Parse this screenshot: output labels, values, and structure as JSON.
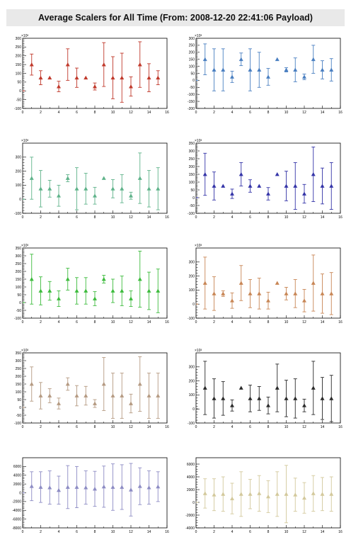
{
  "title": "Average Scalers for All Time (From: 2008-12-20 22:41:06 Payload)",
  "chart_data": [
    {
      "type": "scatter",
      "color": "#c0392b",
      "multiplier": "×10³",
      "xlim": [
        0,
        16
      ],
      "ylim": [
        -100,
        300
      ],
      "yticks": [
        -100,
        -50,
        0,
        50,
        100,
        150,
        200,
        250,
        300
      ],
      "ytick_labels": [
        "-100",
        "-50",
        "0",
        "50",
        "100",
        "150",
        "200",
        "250",
        "300"
      ],
      "xticks": [
        0,
        2,
        4,
        6,
        8,
        10,
        12,
        14,
        16
      ],
      "x": [
        0,
        1,
        2,
        3,
        4,
        5,
        6,
        7,
        8,
        9,
        10,
        11,
        12,
        13,
        14,
        15
      ],
      "y": [
        0,
        150,
        75,
        75,
        25,
        150,
        75,
        75,
        25,
        150,
        75,
        75,
        25,
        150,
        75,
        75
      ],
      "err": [
        0,
        60,
        40,
        0,
        30,
        90,
        55,
        0,
        20,
        125,
        120,
        140,
        55,
        130,
        80,
        40
      ]
    },
    {
      "type": "scatter",
      "color": "#4a7fc1",
      "multiplier": "×10³",
      "xlim": [
        0,
        16
      ],
      "ylim": [
        -200,
        300
      ],
      "yticks": [
        -200,
        -150,
        -100,
        -50,
        0,
        50,
        100,
        150,
        200,
        250,
        300
      ],
      "ytick_labels": [
        "-200",
        "-150",
        "-100",
        "-50",
        "0",
        "50",
        "100",
        "150",
        "200",
        "250",
        "300"
      ],
      "xticks": [
        0,
        2,
        4,
        6,
        8,
        10,
        12,
        14,
        16
      ],
      "x": [
        0,
        1,
        2,
        3,
        4,
        5,
        6,
        7,
        8,
        9,
        10,
        11,
        12,
        13,
        14,
        15
      ],
      "y": [
        0,
        150,
        75,
        75,
        25,
        150,
        75,
        75,
        25,
        150,
        75,
        75,
        25,
        150,
        75,
        75
      ],
      "err": [
        0,
        110,
        150,
        150,
        40,
        45,
        150,
        125,
        60,
        0,
        15,
        85,
        20,
        100,
        65,
        80
      ]
    },
    {
      "type": "scatter",
      "color": "#5fb38a",
      "multiplier": "×10³",
      "xlim": [
        0,
        16
      ],
      "ylim": [
        -100,
        400
      ],
      "yticks": [
        -100,
        0,
        100,
        200,
        300
      ],
      "ytick_labels": [
        "-100",
        "0",
        "100",
        "200",
        "300"
      ],
      "xticks": [
        0,
        2,
        4,
        6,
        8,
        10,
        12,
        14,
        16
      ],
      "x": [
        0,
        1,
        2,
        3,
        4,
        5,
        6,
        7,
        8,
        9,
        10,
        11,
        12,
        13,
        14,
        15
      ],
      "y": [
        0,
        150,
        75,
        75,
        25,
        150,
        75,
        75,
        25,
        150,
        75,
        75,
        25,
        150,
        75,
        75
      ],
      "err": [
        0,
        150,
        130,
        60,
        75,
        25,
        150,
        110,
        60,
        0,
        65,
        100,
        25,
        180,
        130,
        150
      ]
    },
    {
      "type": "scatter",
      "color": "#3535a8",
      "multiplier": "×10³",
      "xlim": [
        0,
        16
      ],
      "ylim": [
        -100,
        350
      ],
      "yticks": [
        -100,
        -50,
        0,
        50,
        100,
        150,
        200,
        250,
        300,
        350
      ],
      "ytick_labels": [
        "-100",
        "-50",
        "0",
        "50",
        "100",
        "150",
        "200",
        "250",
        "300",
        "350"
      ],
      "xticks": [
        0,
        2,
        4,
        6,
        8,
        10,
        12,
        14,
        16
      ],
      "x": [
        0,
        1,
        2,
        3,
        4,
        5,
        6,
        7,
        8,
        9,
        10,
        11,
        12,
        13,
        14,
        15
      ],
      "y": [
        0,
        150,
        75,
        75,
        25,
        150,
        75,
        75,
        25,
        150,
        75,
        75,
        25,
        150,
        75,
        75
      ],
      "err": [
        0,
        135,
        90,
        0,
        30,
        75,
        40,
        0,
        40,
        0,
        95,
        150,
        60,
        175,
        115,
        150
      ]
    },
    {
      "type": "scatter",
      "color": "#3dbb3d",
      "multiplier": "×10³",
      "xlim": [
        0,
        16
      ],
      "ylim": [
        -100,
        350
      ],
      "yticks": [
        -100,
        -50,
        0,
        50,
        100,
        150,
        200,
        250,
        300,
        350
      ],
      "ytick_labels": [
        "-100",
        "-50",
        "0",
        "50",
        "100",
        "150",
        "200",
        "250",
        "300",
        "350"
      ],
      "xticks": [
        0,
        2,
        4,
        6,
        8,
        10,
        12,
        14,
        16
      ],
      "x": [
        0,
        1,
        2,
        3,
        4,
        5,
        6,
        7,
        8,
        9,
        10,
        11,
        12,
        13,
        14,
        15
      ],
      "y": [
        0,
        150,
        75,
        75,
        25,
        150,
        75,
        75,
        25,
        150,
        75,
        75,
        25,
        150,
        75,
        75
      ],
      "err": [
        0,
        160,
        90,
        60,
        50,
        70,
        85,
        85,
        45,
        25,
        75,
        95,
        50,
        180,
        120,
        140
      ]
    },
    {
      "type": "scatter",
      "color": "#c88655",
      "multiplier": "×10³",
      "xlim": [
        0,
        16
      ],
      "ylim": [
        -100,
        400
      ],
      "yticks": [
        -100,
        0,
        100,
        200,
        300
      ],
      "ytick_labels": [
        "-100",
        "0",
        "100",
        "200",
        "300"
      ],
      "xticks": [
        0,
        2,
        4,
        6,
        8,
        10,
        12,
        14,
        16
      ],
      "x": [
        0,
        1,
        2,
        3,
        4,
        5,
        6,
        7,
        8,
        9,
        10,
        11,
        12,
        13,
        14,
        15
      ],
      "y": [
        0,
        150,
        75,
        75,
        25,
        150,
        75,
        75,
        25,
        150,
        75,
        75,
        25,
        150,
        75,
        75
      ],
      "err": [
        0,
        185,
        120,
        20,
        55,
        125,
        100,
        110,
        60,
        0,
        45,
        100,
        80,
        200,
        140,
        150
      ]
    },
    {
      "type": "scatter",
      "color": "#b59a82",
      "multiplier": "×10³",
      "xlim": [
        0,
        16
      ],
      "ylim": [
        -100,
        350
      ],
      "yticks": [
        -100,
        -50,
        0,
        50,
        100,
        150,
        200,
        250,
        300,
        350
      ],
      "ytick_labels": [
        "-100",
        "-50",
        "0",
        "50",
        "100",
        "150",
        "200",
        "250",
        "300",
        "350"
      ],
      "xticks": [
        0,
        2,
        4,
        6,
        8,
        10,
        12,
        14,
        16
      ],
      "x": [
        0,
        1,
        2,
        3,
        4,
        5,
        6,
        7,
        8,
        9,
        10,
        11,
        12,
        13,
        14,
        15
      ],
      "y": [
        0,
        150,
        75,
        75,
        25,
        150,
        75,
        75,
        25,
        150,
        75,
        75,
        25,
        150,
        75,
        75
      ],
      "err": [
        0,
        110,
        85,
        45,
        35,
        40,
        65,
        60,
        25,
        170,
        145,
        145,
        60,
        175,
        145,
        145
      ]
    },
    {
      "type": "scatter",
      "color": "#2a2a2a",
      "multiplier": "×10³",
      "xlim": [
        0,
        16
      ],
      "ylim": [
        -100,
        400
      ],
      "yticks": [
        -100,
        0,
        100,
        200,
        300
      ],
      "ytick_labels": [
        "-100",
        "0",
        "100",
        "200",
        "300"
      ],
      "xticks": [
        0,
        2,
        4,
        6,
        8,
        10,
        12,
        14,
        16
      ],
      "x": [
        0,
        1,
        2,
        3,
        4,
        5,
        6,
        7,
        8,
        9,
        10,
        11,
        12,
        13,
        14,
        15
      ],
      "y": [
        0,
        150,
        75,
        75,
        25,
        150,
        75,
        75,
        25,
        150,
        75,
        75,
        25,
        150,
        75,
        75
      ],
      "err": [
        0,
        190,
        140,
        120,
        40,
        0,
        95,
        85,
        60,
        170,
        130,
        140,
        45,
        190,
        150,
        165
      ]
    },
    {
      "type": "scatter",
      "color": "#8d8cc4",
      "multiplier": "",
      "xlim": [
        0,
        16
      ],
      "ylim": [
        -8000,
        8000
      ],
      "yticks": [
        -8000,
        -6000,
        -4000,
        -2000,
        0,
        2000,
        4000,
        6000
      ],
      "ytick_labels": [
        "-8000",
        "-6000",
        "-4000",
        "-2000",
        "0",
        "2000",
        "4000",
        "6000"
      ],
      "xticks": [
        0,
        2,
        4,
        6,
        8,
        10,
        12,
        14,
        16
      ],
      "x": [
        0,
        1,
        2,
        3,
        4,
        5,
        6,
        7,
        8,
        9,
        10,
        11,
        12,
        13,
        14,
        15
      ],
      "y": [
        0,
        1500,
        1300,
        1200,
        600,
        1300,
        1300,
        1200,
        900,
        1400,
        1300,
        1300,
        700,
        1500,
        1200,
        1400
      ],
      "err": [
        0,
        3300,
        3500,
        3800,
        3200,
        4900,
        4700,
        3800,
        4000,
        4700,
        5300,
        5100,
        6000,
        4200,
        3800,
        3400
      ]
    },
    {
      "type": "scatter",
      "color": "#d3c99c",
      "multiplier": "",
      "xlim": [
        0,
        16
      ],
      "ylim": [
        -4000,
        7000
      ],
      "yticks": [
        -4000,
        -2000,
        0,
        2000,
        4000,
        6000
      ],
      "ytick_labels": [
        "-4000",
        "-2000",
        "0",
        "2000",
        "4000",
        "6000"
      ],
      "xticks": [
        0,
        2,
        4,
        6,
        8,
        10,
        12,
        14,
        16
      ],
      "x": [
        0,
        1,
        2,
        3,
        4,
        5,
        6,
        7,
        8,
        9,
        10,
        11,
        12,
        13,
        14,
        15
      ],
      "y": [
        0,
        1400,
        1200,
        1300,
        600,
        1300,
        1300,
        1400,
        900,
        1300,
        1300,
        1200,
        700,
        1400,
        1300,
        1300
      ],
      "err": [
        0,
        2300,
        2500,
        2700,
        2400,
        3500,
        2300,
        2800,
        2500,
        3500,
        4500,
        2600,
        2400,
        2800,
        2600,
        2700
      ]
    }
  ]
}
